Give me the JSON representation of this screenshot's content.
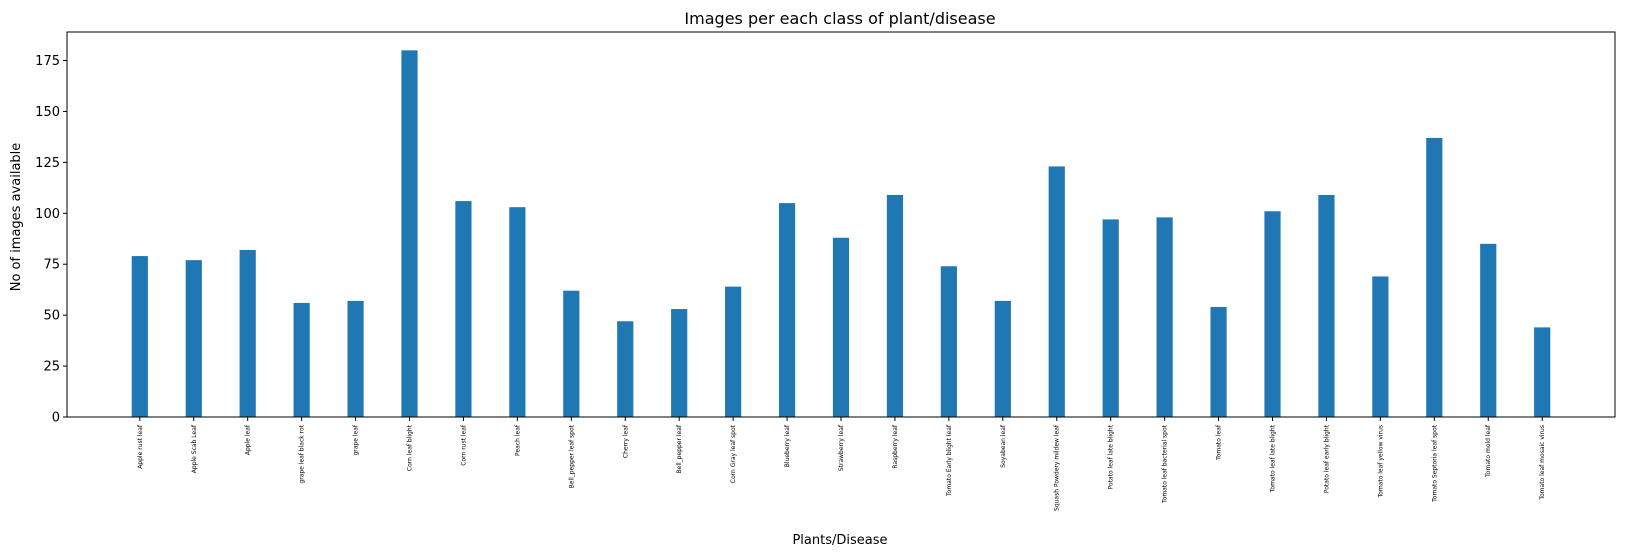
{
  "chart_data": {
    "type": "bar",
    "title": "Images per each class of plant/disease",
    "xlabel": "Plants/Disease",
    "ylabel": "No of images available",
    "ylim": [
      0,
      189
    ],
    "yticks": [
      0,
      25,
      50,
      75,
      100,
      125,
      150,
      175
    ],
    "grid": false,
    "bar_color": "#1f77b4",
    "categories": [
      "Apple rust leaf",
      "Apple Scab Leaf",
      "Apple leaf",
      "grape leaf black rot",
      "grape leaf",
      "Corn leaf blight",
      "Corn rust leaf",
      "Peach leaf",
      "Bell_pepper leaf spot",
      "Cherry leaf",
      "Bell_pepper leaf",
      "Corn Gray leaf spot",
      "Blueberry leaf",
      "Strawberry leaf",
      "Raspberry leaf",
      "Tomato Early blight leaf",
      "Soyabean leaf",
      "Squash Powdery mildew leaf",
      "Potato leaf late blight",
      "Tomato leaf bacterial spot",
      "Tomato leaf",
      "Tomato leaf late blight",
      "Potato leaf early blight",
      "Tomato leaf yellow virus",
      "Tomato Septoria leaf spot",
      "Tomato mold leaf",
      "Tomato leaf mosaic virus"
    ],
    "values": [
      79,
      77,
      82,
      56,
      57,
      180,
      106,
      103,
      62,
      47,
      53,
      64,
      105,
      88,
      109,
      74,
      57,
      123,
      97,
      98,
      54,
      101,
      109,
      69,
      137,
      85,
      44
    ]
  }
}
